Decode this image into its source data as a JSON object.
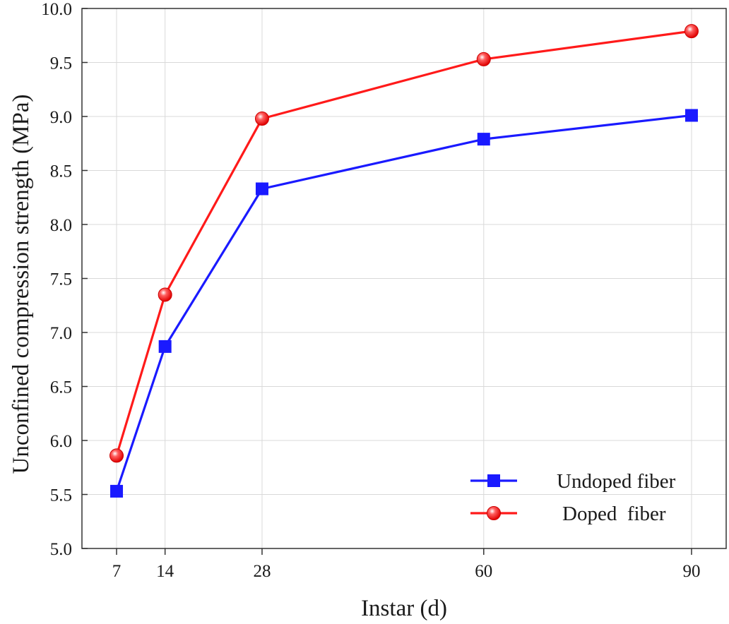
{
  "chart_data": {
    "type": "line",
    "title": "",
    "xlabel": "Instar (d)",
    "ylabel": "Unconfined compression strength (MPa)",
    "x": [
      7,
      14,
      28,
      60,
      90
    ],
    "x_ticks": [
      "7",
      "14",
      "28",
      "60",
      "90"
    ],
    "xlim": [
      2,
      95
    ],
    "ylim": [
      5.0,
      10.0
    ],
    "y_ticks": [
      "5.0",
      "5.5",
      "6.0",
      "6.5",
      "7.0",
      "7.5",
      "8.0",
      "8.5",
      "9.0",
      "9.5",
      "10.0"
    ],
    "grid": true,
    "legend_position": "bottom-right",
    "series": [
      {
        "name": "Undoped fiber",
        "values": [
          5.53,
          6.87,
          8.33,
          8.79,
          9.01
        ],
        "color": "#1a1aff",
        "marker": "square"
      },
      {
        "name": "Doped  fiber",
        "values": [
          5.86,
          7.35,
          8.98,
          9.53,
          9.79
        ],
        "color": "#ff1a1a",
        "marker": "circle"
      }
    ]
  }
}
